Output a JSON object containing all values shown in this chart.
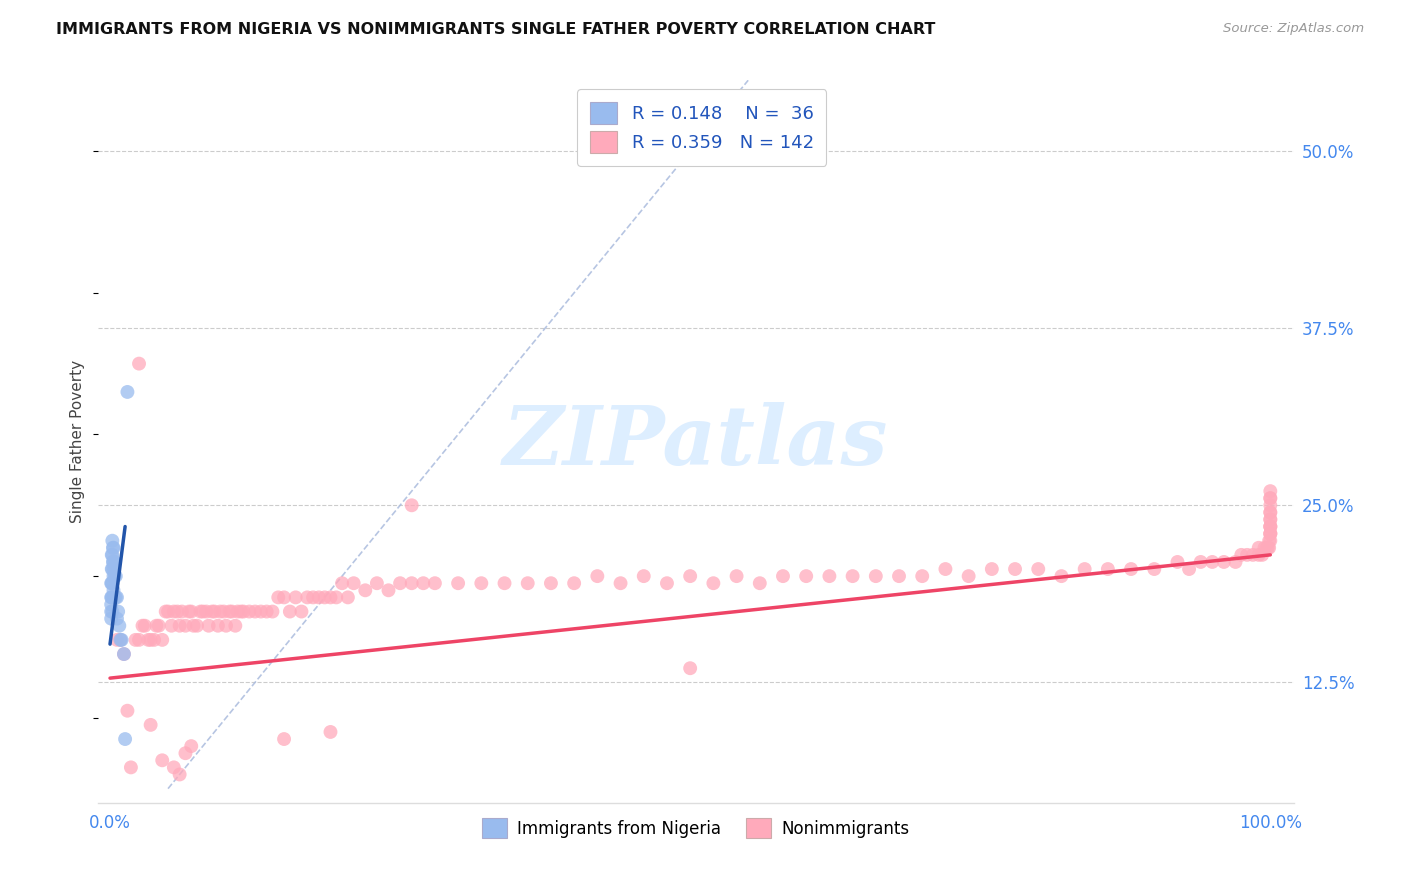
{
  "title": "IMMIGRANTS FROM NIGERIA VS NONIMMIGRANTS SINGLE FATHER POVERTY CORRELATION CHART",
  "source": "Source: ZipAtlas.com",
  "ylabel": "Single Father Poverty",
  "legend_label1": "Immigrants from Nigeria",
  "legend_label2": "Nonimmigrants",
  "R1": 0.148,
  "N1": 36,
  "R2": 0.359,
  "N2": 142,
  "ytick_labels": [
    "12.5%",
    "25.0%",
    "37.5%",
    "50.0%"
  ],
  "ytick_values": [
    0.125,
    0.25,
    0.375,
    0.5
  ],
  "xlim": [
    0.0,
    1.0
  ],
  "ylim": [
    0.04,
    0.55
  ],
  "color_blue": "#99BBEE",
  "color_pink": "#FFAABB",
  "color_blue_line": "#2255AA",
  "color_pink_line": "#EE4466",
  "color_diag": "#AABBDD",
  "color_grid": "#CCCCCC",
  "title_color": "#111111",
  "source_color": "#999999",
  "tick_color": "#4488EE",
  "watermark_text": "ZIPatlas",
  "watermark_color": "#DDEEFF",
  "blue_x": [
    0.001,
    0.001,
    0.001,
    0.001,
    0.001,
    0.0015,
    0.0015,
    0.0015,
    0.0015,
    0.002,
    0.002,
    0.002,
    0.002,
    0.002,
    0.002,
    0.0025,
    0.0025,
    0.003,
    0.003,
    0.003,
    0.003,
    0.0035,
    0.004,
    0.004,
    0.004,
    0.005,
    0.005,
    0.006,
    0.006,
    0.007,
    0.008,
    0.009,
    0.01,
    0.012,
    0.013,
    0.015
  ],
  "blue_y": [
    0.195,
    0.185,
    0.18,
    0.175,
    0.17,
    0.215,
    0.205,
    0.195,
    0.185,
    0.225,
    0.215,
    0.205,
    0.195,
    0.185,
    0.175,
    0.22,
    0.21,
    0.22,
    0.21,
    0.2,
    0.19,
    0.205,
    0.21,
    0.2,
    0.185,
    0.2,
    0.185,
    0.185,
    0.17,
    0.175,
    0.165,
    0.155,
    0.155,
    0.145,
    0.085,
    0.33
  ],
  "blue_line_x": [
    0.0,
    0.013
  ],
  "blue_line_y": [
    0.152,
    0.235
  ],
  "pink_line_x": [
    0.0,
    1.0
  ],
  "pink_line_y": [
    0.128,
    0.215
  ],
  "pink_x": [
    0.006,
    0.009,
    0.012,
    0.015,
    0.018,
    0.022,
    0.025,
    0.028,
    0.03,
    0.033,
    0.035,
    0.038,
    0.04,
    0.042,
    0.045,
    0.048,
    0.05,
    0.053,
    0.055,
    0.058,
    0.06,
    0.062,
    0.065,
    0.068,
    0.07,
    0.072,
    0.075,
    0.078,
    0.08,
    0.083,
    0.085,
    0.088,
    0.09,
    0.093,
    0.095,
    0.098,
    0.1,
    0.103,
    0.105,
    0.108,
    0.11,
    0.113,
    0.115,
    0.12,
    0.125,
    0.13,
    0.135,
    0.14,
    0.145,
    0.15,
    0.155,
    0.16,
    0.165,
    0.17,
    0.175,
    0.18,
    0.185,
    0.19,
    0.195,
    0.2,
    0.205,
    0.21,
    0.22,
    0.23,
    0.24,
    0.25,
    0.26,
    0.27,
    0.28,
    0.3,
    0.32,
    0.34,
    0.36,
    0.38,
    0.4,
    0.42,
    0.44,
    0.46,
    0.48,
    0.5,
    0.52,
    0.54,
    0.56,
    0.58,
    0.6,
    0.62,
    0.64,
    0.66,
    0.68,
    0.7,
    0.72,
    0.74,
    0.76,
    0.78,
    0.8,
    0.82,
    0.84,
    0.86,
    0.88,
    0.9,
    0.92,
    0.93,
    0.94,
    0.95,
    0.96,
    0.97,
    0.975,
    0.98,
    0.985,
    0.99,
    0.99,
    0.993,
    0.995,
    0.997,
    0.998,
    0.999,
    0.999,
    1.0,
    1.0,
    1.0,
    1.0,
    1.0,
    1.0,
    1.0,
    1.0,
    1.0,
    1.0,
    1.0,
    1.0,
    1.0,
    1.0,
    1.0,
    0.025,
    0.26,
    0.5,
    0.07,
    0.15,
    0.19,
    0.035,
    0.045,
    0.055,
    0.06,
    0.065
  ],
  "pink_y": [
    0.155,
    0.155,
    0.145,
    0.105,
    0.065,
    0.155,
    0.155,
    0.165,
    0.165,
    0.155,
    0.155,
    0.155,
    0.165,
    0.165,
    0.155,
    0.175,
    0.175,
    0.165,
    0.175,
    0.175,
    0.165,
    0.175,
    0.165,
    0.175,
    0.175,
    0.165,
    0.165,
    0.175,
    0.175,
    0.175,
    0.165,
    0.175,
    0.175,
    0.165,
    0.175,
    0.175,
    0.165,
    0.175,
    0.175,
    0.165,
    0.175,
    0.175,
    0.175,
    0.175,
    0.175,
    0.175,
    0.175,
    0.175,
    0.185,
    0.185,
    0.175,
    0.185,
    0.175,
    0.185,
    0.185,
    0.185,
    0.185,
    0.185,
    0.185,
    0.195,
    0.185,
    0.195,
    0.19,
    0.195,
    0.19,
    0.195,
    0.195,
    0.195,
    0.195,
    0.195,
    0.195,
    0.195,
    0.195,
    0.195,
    0.195,
    0.2,
    0.195,
    0.2,
    0.195,
    0.2,
    0.195,
    0.2,
    0.195,
    0.2,
    0.2,
    0.2,
    0.2,
    0.2,
    0.2,
    0.2,
    0.205,
    0.2,
    0.205,
    0.205,
    0.205,
    0.2,
    0.205,
    0.205,
    0.205,
    0.205,
    0.21,
    0.205,
    0.21,
    0.21,
    0.21,
    0.21,
    0.215,
    0.215,
    0.215,
    0.22,
    0.215,
    0.215,
    0.22,
    0.22,
    0.22,
    0.22,
    0.225,
    0.225,
    0.23,
    0.235,
    0.24,
    0.245,
    0.25,
    0.255,
    0.26,
    0.255,
    0.245,
    0.24,
    0.235,
    0.235,
    0.23,
    0.23,
    0.35,
    0.25,
    0.135,
    0.08,
    0.085,
    0.09,
    0.095,
    0.07,
    0.065,
    0.06,
    0.075
  ]
}
